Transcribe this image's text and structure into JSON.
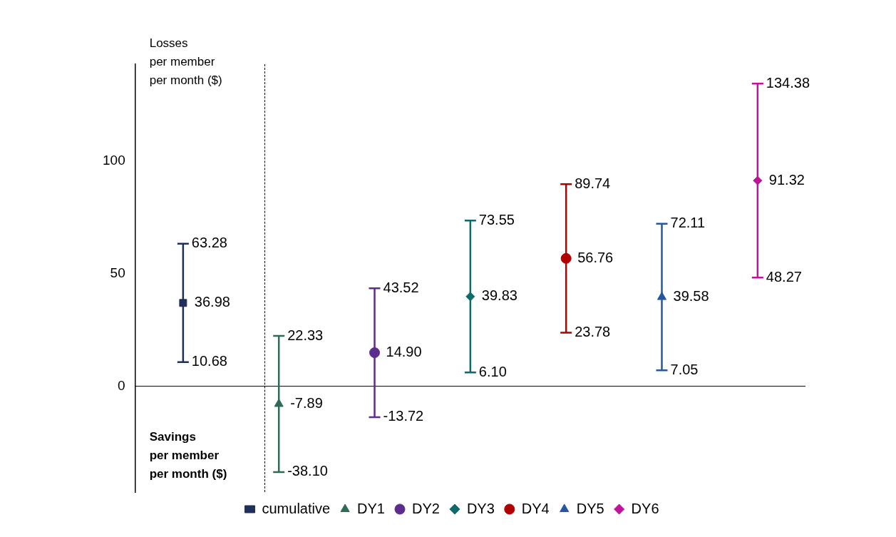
{
  "chart_data": {
    "type": "scatter",
    "categories": [
      null,
      null,
      null,
      null,
      null,
      null,
      null
    ],
    "series": [
      {
        "name": "cumulative",
        "color": "#1f2f5a",
        "marker": "square",
        "values": [
          36.98,
          null,
          null,
          null,
          null,
          null,
          null
        ],
        "errors": [
          [
            10.68,
            63.28
          ],
          null,
          null,
          null,
          null,
          null,
          null
        ],
        "value_labels": [
          "36.98",
          null,
          null,
          null,
          null,
          null,
          null
        ]
      },
      {
        "name": "DY1",
        "color": "#2e6b55",
        "marker": "triangle",
        "values": [
          null,
          -7.89,
          null,
          null,
          null,
          null,
          null
        ],
        "errors": [
          null,
          [
            -38.1,
            22.33
          ],
          null,
          null,
          null,
          null,
          null
        ],
        "value_labels": [
          null,
          "-7.89",
          null,
          null,
          null,
          null,
          null
        ]
      },
      {
        "name": "DY2",
        "color": "#5b2d8e",
        "marker": "circle",
        "values": [
          null,
          null,
          14.9,
          null,
          null,
          null,
          null
        ],
        "errors": [
          null,
          null,
          [
            -13.72,
            43.52
          ],
          null,
          null,
          null,
          null
        ],
        "value_labels": [
          null,
          null,
          "14.90",
          null,
          null,
          null,
          null
        ]
      },
      {
        "name": "DY3",
        "color": "#0f6b6b",
        "marker": "diamond",
        "values": [
          null,
          null,
          null,
          39.83,
          null,
          null,
          null
        ],
        "errors": [
          null,
          null,
          null,
          [
            6.1,
            73.55
          ],
          null,
          null,
          null
        ],
        "value_labels": [
          null,
          null,
          null,
          "39.83",
          null,
          null,
          null
        ]
      },
      {
        "name": "DY4",
        "color": "#b00000",
        "marker": "circle",
        "values": [
          null,
          null,
          null,
          null,
          56.76,
          null,
          null
        ],
        "errors": [
          null,
          null,
          null,
          null,
          [
            23.78,
            89.74
          ],
          null,
          null
        ],
        "value_labels": [
          null,
          null,
          null,
          null,
          "56.76",
          null,
          null
        ]
      },
      {
        "name": "DY5",
        "color": "#2457a0",
        "marker": "triangle",
        "values": [
          null,
          null,
          null,
          null,
          null,
          39.58,
          null
        ],
        "errors": [
          null,
          null,
          null,
          null,
          null,
          [
            7.05,
            72.11
          ],
          null
        ],
        "value_labels": [
          null,
          null,
          null,
          null,
          null,
          "39.58",
          null
        ]
      },
      {
        "name": "DY6",
        "color": "#c0139c",
        "marker": "diamond",
        "values": [
          null,
          null,
          null,
          null,
          null,
          null,
          91.32
        ],
        "errors": [
          null,
          null,
          null,
          null,
          null,
          null,
          [
            48.27,
            134.38
          ]
        ],
        "value_labels": [
          null,
          null,
          null,
          null,
          null,
          null,
          "91.32"
        ]
      }
    ],
    "ylim": [
      -47,
      143
    ],
    "yticks": [
      0,
      50,
      100
    ],
    "grid": false,
    "legend": "bottom",
    "tick_labels": "y",
    "ref_lines": [
      {
        "axis": "y",
        "value": 0,
        "color": "#000000",
        "line_style": "solid"
      }
    ],
    "annotations": [
      "Losses\nper member\nper month ($)",
      "Savings\nper member\nper month ($)",
      "63.28",
      "10.68",
      "22.33",
      "-38.10",
      "43.52",
      "-13.72",
      "73.55",
      "6.10",
      "89.74",
      "23.78",
      "72.11",
      "7.05",
      "134.38",
      "48.27"
    ]
  }
}
